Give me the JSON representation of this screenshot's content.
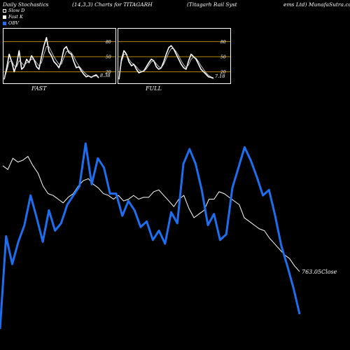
{
  "header": {
    "c1": "Daily Stochastics",
    "c2": "(14,3,3) Charts for TITAGARH",
    "c3": "(Titagarh Rail Syst",
    "c4": "ems Ltd) MunafaSutra.com"
  },
  "legend": [
    {
      "label": "Slow D",
      "color": "#ffffff"
    },
    {
      "label": "Fast K",
      "color": "#ffffff"
    },
    {
      "label": "OBV",
      "color": "#1e6ef0"
    }
  ],
  "colors": {
    "background": "#000000",
    "obv": "#1e6ef0",
    "price": "#ffffff",
    "level_lines": "#b8860b"
  },
  "chart_data": [
    {
      "type": "line",
      "panel": "FAST",
      "label": "FAST",
      "ylim": [
        0,
        100
      ],
      "levels": [
        20,
        50,
        80
      ],
      "tick_labels": [
        "80",
        "50",
        "20"
      ],
      "last_value_label": "8.38",
      "series": [
        {
          "name": "Fast K",
          "values": [
            5,
            28,
            55,
            40,
            20,
            35,
            62,
            25,
            30,
            45,
            38,
            52,
            44,
            30,
            25,
            50,
            72,
            88,
            60,
            52,
            40,
            35,
            28,
            42,
            65,
            70,
            58,
            55,
            40,
            28,
            30,
            22,
            15,
            10,
            12,
            9,
            12,
            14,
            8
          ]
        },
        {
          "name": "Slow D",
          "values": [
            6,
            22,
            40,
            42,
            32,
            30,
            42,
            38,
            32,
            38,
            40,
            45,
            45,
            38,
            32,
            38,
            55,
            70,
            70,
            60,
            50,
            42,
            35,
            35,
            48,
            60,
            62,
            58,
            50,
            40,
            32,
            26,
            20,
            15,
            12,
            10,
            11,
            12,
            10
          ]
        }
      ]
    },
    {
      "type": "line",
      "panel": "FULL",
      "label": "FULL",
      "ylim": [
        0,
        100
      ],
      "levels": [
        20,
        50,
        80
      ],
      "tick_labels": [
        "80",
        "50",
        "20"
      ],
      "last_value_label": "7.18",
      "series": [
        {
          "name": "Full K",
          "values": [
            5,
            45,
            62,
            55,
            40,
            32,
            35,
            25,
            18,
            20,
            22,
            30,
            38,
            45,
            42,
            30,
            25,
            28,
            40,
            55,
            68,
            72,
            65,
            55,
            45,
            35,
            28,
            25,
            42,
            55,
            50,
            45,
            35,
            25,
            20,
            15,
            10,
            9,
            7
          ]
        },
        {
          "name": "Full D",
          "values": [
            6,
            40,
            55,
            54,
            45,
            38,
            35,
            30,
            24,
            21,
            21,
            26,
            33,
            40,
            42,
            36,
            30,
            28,
            35,
            46,
            58,
            66,
            66,
            60,
            52,
            42,
            34,
            28,
            34,
            45,
            49,
            47,
            40,
            32,
            25,
            18,
            13,
            10,
            8
          ]
        }
      ]
    },
    {
      "type": "line",
      "panel": "MAIN",
      "last_price_label": "763.05",
      "last_price_suffix": "Close",
      "ylim": [
        0,
        100
      ],
      "series": [
        {
          "name": "Price",
          "values": [
            88,
            86,
            92,
            90,
            91,
            93,
            88,
            84,
            77,
            73,
            72,
            70,
            68,
            71,
            73,
            77,
            80,
            81,
            78,
            76,
            73,
            72,
            70,
            72,
            69,
            70,
            72,
            70,
            71,
            71,
            74,
            75,
            72,
            69,
            66,
            70,
            72,
            65,
            60,
            62,
            64,
            70,
            70,
            74,
            73,
            71,
            69,
            67,
            60,
            58,
            56,
            54,
            53,
            49,
            46,
            43,
            40,
            38,
            34,
            31
          ]
        },
        {
          "name": "OBV",
          "values": [
            0,
            50,
            35,
            47,
            56,
            72,
            60,
            47,
            64,
            53,
            57,
            67,
            72,
            77,
            100,
            78,
            92,
            87,
            73,
            73,
            61,
            69,
            64,
            55,
            58,
            48,
            53,
            46,
            63,
            57,
            89,
            97,
            89,
            75,
            56,
            62,
            48,
            51,
            76,
            87,
            98,
            91,
            82,
            72,
            75,
            61,
            45,
            34,
            22,
            8
          ]
        }
      ]
    }
  ]
}
